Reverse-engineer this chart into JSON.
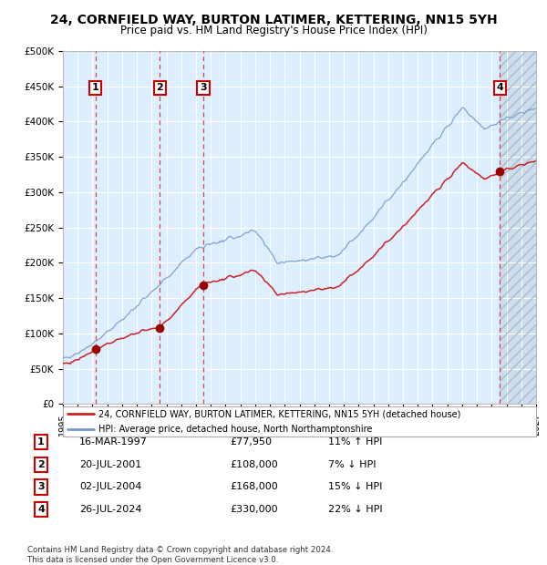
{
  "title": "24, CORNFIELD WAY, BURTON LATIMER, KETTERING, NN15 5YH",
  "subtitle": "Price paid vs. HM Land Registry's House Price Index (HPI)",
  "ylim": [
    0,
    500000
  ],
  "yticks": [
    0,
    50000,
    100000,
    150000,
    200000,
    250000,
    300000,
    350000,
    400000,
    450000,
    500000
  ],
  "ytick_labels": [
    "£0",
    "£50K",
    "£100K",
    "£150K",
    "£200K",
    "£250K",
    "£300K",
    "£350K",
    "£400K",
    "£450K",
    "£500K"
  ],
  "xlim_start": 1995.0,
  "xlim_end": 2027.0,
  "hpi_color": "#7799cc",
  "price_color": "#cc2222",
  "sale_marker_color": "#990000",
  "dashed_line_color": "#dd4444",
  "bg_color": "#ddeeff",
  "grid_color": "#ffffff",
  "legend_line1": "24, CORNFIELD WAY, BURTON LATIMER, KETTERING, NN15 5YH (detached house)",
  "legend_line2": "HPI: Average price, detached house, North Northamptonshire",
  "sale_dates": [
    1997.21,
    2001.55,
    2004.5,
    2024.56
  ],
  "sale_prices": [
    77950,
    108000,
    168000,
    330000
  ],
  "sale_labels": [
    "1",
    "2",
    "3",
    "4"
  ],
  "table_rows": [
    [
      "1",
      "16-MAR-1997",
      "£77,950",
      "11% ↑ HPI"
    ],
    [
      "2",
      "20-JUL-2001",
      "£108,000",
      "7% ↓ HPI"
    ],
    [
      "3",
      "02-JUL-2004",
      "£168,000",
      "15% ↓ HPI"
    ],
    [
      "4",
      "26-JUL-2024",
      "£330,000",
      "22% ↓ HPI"
    ]
  ],
  "footer": "Contains HM Land Registry data © Crown copyright and database right 2024.\nThis data is licensed under the Open Government Licence v3.0."
}
